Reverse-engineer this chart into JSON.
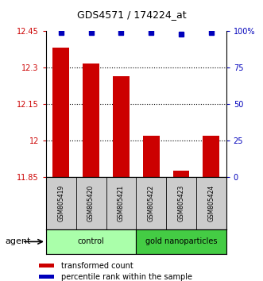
{
  "title": "GDS4571 / 174224_at",
  "samples": [
    "GSM805419",
    "GSM805420",
    "GSM805421",
    "GSM805422",
    "GSM805423",
    "GSM805424"
  ],
  "bar_values": [
    12.38,
    12.315,
    12.265,
    12.02,
    11.875,
    12.02
  ],
  "percentile_values": [
    99,
    99,
    99,
    99,
    98,
    99
  ],
  "ylim_left": [
    11.85,
    12.45
  ],
  "ylim_right": [
    0,
    100
  ],
  "yticks_left": [
    11.85,
    12.0,
    12.15,
    12.3,
    12.45
  ],
  "ytick_labels_left": [
    "11.85",
    "12",
    "12.15",
    "12.3",
    "12.45"
  ],
  "yticks_right": [
    0,
    25,
    50,
    75,
    100
  ],
  "ytick_labels_right": [
    "0",
    "25",
    "50",
    "75",
    "100%"
  ],
  "bar_color": "#cc0000",
  "dot_color": "#0000bb",
  "bar_width": 0.55,
  "groups": [
    {
      "label": "control",
      "indices": [
        0,
        1,
        2
      ],
      "color": "#aaffaa"
    },
    {
      "label": "gold nanoparticles",
      "indices": [
        3,
        4,
        5
      ],
      "color": "#44cc44"
    }
  ],
  "agent_label": "agent",
  "legend_items": [
    {
      "label": "transformed count",
      "color": "#cc0000"
    },
    {
      "label": "percentile rank within the sample",
      "color": "#0000bb"
    }
  ],
  "sample_box_color": "#cccccc",
  "fig_width": 3.31,
  "fig_height": 3.54,
  "dpi": 100
}
